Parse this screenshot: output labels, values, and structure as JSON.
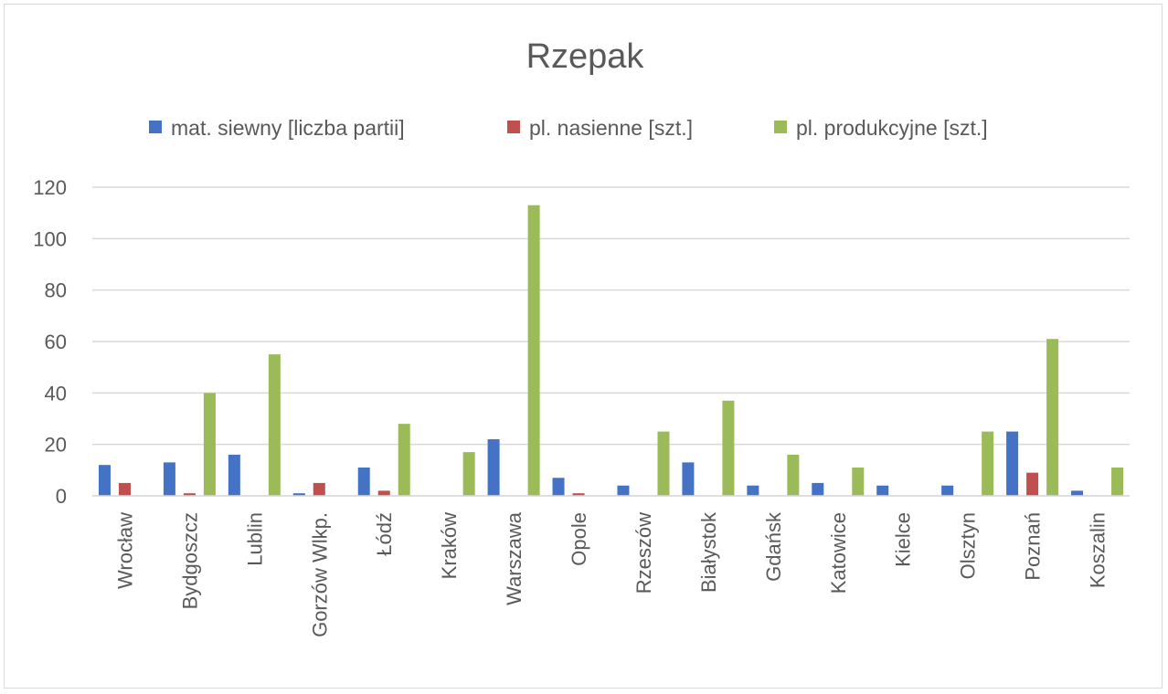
{
  "chart_data": {
    "type": "bar",
    "title": "Rzepak",
    "xlabel": "",
    "ylabel": "",
    "ylim": [
      0,
      120
    ],
    "yticks": [
      0,
      20,
      40,
      60,
      80,
      100,
      120
    ],
    "grid": true,
    "legend_position": "top",
    "categories": [
      "Wrocław",
      "Bydgoszcz",
      "Lublin",
      "Gorzów Wlkp.",
      "Łódź",
      "Kraków",
      "Warszawa",
      "Opole",
      "Rzeszów",
      "Białystok",
      "Gdańsk",
      "Katowice",
      "Kielce",
      "Olsztyn",
      "Poznań",
      "Koszalin"
    ],
    "series": [
      {
        "name": "mat. siewny [liczba partii]",
        "color": "#4472c4",
        "values": [
          12,
          13,
          16,
          1,
          11,
          0,
          22,
          7,
          4,
          13,
          4,
          5,
          4,
          4,
          25,
          2
        ]
      },
      {
        "name": "pl. nasienne [szt.]",
        "color": "#c0504d",
        "values": [
          5,
          1,
          0,
          5,
          2,
          0,
          0,
          1,
          0,
          0,
          0,
          0,
          0,
          0,
          9,
          0
        ]
      },
      {
        "name": "pl. produkcyjne [szt.]",
        "color": "#9bbb59",
        "values": [
          0,
          40,
          55,
          0,
          28,
          17,
          113,
          0,
          25,
          37,
          16,
          11,
          0,
          25,
          61,
          11
        ]
      }
    ]
  }
}
